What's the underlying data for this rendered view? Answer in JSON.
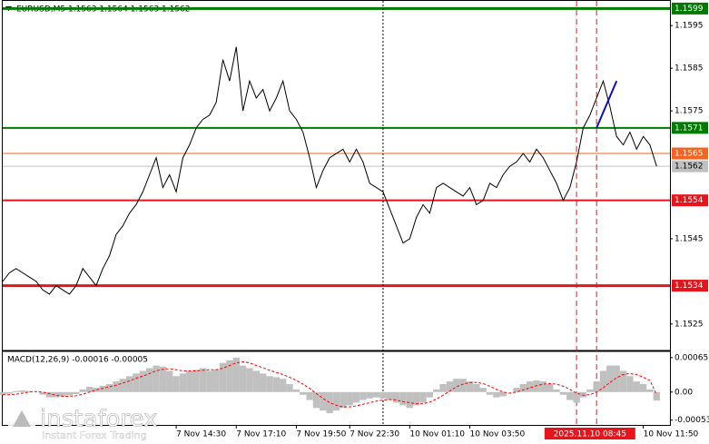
{
  "chart_data": [
    {
      "type": "line",
      "title": "EURUSD,M5  1.1563 1.1564 1.1563 1.1562",
      "color": "#000000",
      "values": [
        1.1535,
        1.1537,
        1.1538,
        1.1537,
        1.1536,
        1.1535,
        1.1533,
        1.1532,
        1.1534,
        1.1533,
        1.1532,
        1.1534,
        1.1538,
        1.1536,
        1.1534,
        1.1538,
        1.1541,
        1.1546,
        1.1548,
        1.1551,
        1.1553,
        1.1556,
        1.156,
        1.1564,
        1.1557,
        1.156,
        1.1556,
        1.1564,
        1.1567,
        1.1571,
        1.1573,
        1.1574,
        1.1577,
        1.1587,
        1.1582,
        1.159,
        1.1575,
        1.1582,
        1.1578,
        1.158,
        1.1575,
        1.1578,
        1.1582,
        1.1575,
        1.1573,
        1.157,
        1.1564,
        1.1557,
        1.1561,
        1.1564,
        1.1565,
        1.1566,
        1.1563,
        1.1566,
        1.1563,
        1.1558,
        1.1557,
        1.1556,
        1.1552,
        1.1548,
        1.1544,
        1.1545,
        1.155,
        1.1553,
        1.1551,
        1.1557,
        1.1558,
        1.1557,
        1.1556,
        1.1555,
        1.1557,
        1.1553,
        1.1554,
        1.1558,
        1.1557,
        1.156,
        1.1562,
        1.1563,
        1.1565,
        1.1563,
        1.1566,
        1.1564,
        1.1561,
        1.1558,
        1.1554,
        1.1557,
        1.1563,
        1.1571,
        1.1574,
        1.1578,
        1.1582,
        1.1576,
        1.1569,
        1.1567,
        1.157,
        1.1566,
        1.1569,
        1.1567,
        1.1562
      ],
      "xlim": [
        0,
        100
      ],
      "ylim": [
        1.1519,
        1.1601
      ],
      "yticks": [
        1.1595,
        1.1585,
        1.1575,
        1.1545,
        1.1525
      ],
      "levels": [
        {
          "value": 1.1599,
          "color": "#007a00",
          "style": "thick"
        },
        {
          "value": 1.1571,
          "color": "#007a00",
          "style": "normal"
        },
        {
          "value": 1.1565,
          "color": "#f26522",
          "style": "thin"
        },
        {
          "value": 1.1562,
          "color": "#c0c0c0",
          "style": "thin"
        },
        {
          "value": 1.1554,
          "color": "#e8141b",
          "style": "normal"
        },
        {
          "value": 1.1534,
          "color": "#e8141b",
          "style": "thick"
        }
      ],
      "trend_line": {
        "x": [
          89,
          92
        ],
        "y": [
          1.1571,
          1.1582
        ],
        "color": "#1010c0"
      },
      "vlines": [
        {
          "x": 57,
          "color": "#000000",
          "style": "dotted"
        },
        {
          "x": 86,
          "color": "#e8141b",
          "style": "dashed"
        },
        {
          "x": 89,
          "color": "#e8141b",
          "style": "dashed"
        }
      ]
    },
    {
      "type": "bar",
      "title": "MACD(12,26,9) -0.00016 -0.00005",
      "series": [
        {
          "type": "bar",
          "color": "#c0c0c0",
          "values": [
            -5e-05,
            -3e-05,
            2e-05,
            3e-05,
            2e-05,
            0,
            -5e-05,
            -0.0001,
            -0.0001,
            -8e-05,
            -6e-05,
            -4e-05,
            5e-05,
            0.0001,
            8e-05,
            0.00012,
            0.00015,
            0.0002,
            0.00025,
            0.0003,
            0.00035,
            0.0004,
            0.00045,
            0.0005,
            0.00048,
            0.0004,
            0.0003,
            0.00035,
            0.0004,
            0.00042,
            0.00045,
            0.0004,
            0.00042,
            0.00055,
            0.0006,
            0.00065,
            0.0005,
            0.00045,
            0.0004,
            0.00035,
            0.0003,
            0.00028,
            0.00025,
            0.00015,
            5e-05,
            -5e-05,
            -0.00015,
            -0.0003,
            -0.00035,
            -0.0004,
            -0.00035,
            -0.0003,
            -0.00025,
            -0.0002,
            -0.00015,
            -0.00012,
            -0.0001,
            -0.00012,
            -0.00015,
            -0.0002,
            -0.00025,
            -0.0003,
            -0.00025,
            -0.0002,
            -0.0001,
            5e-05,
            0.00015,
            0.0002,
            0.00025,
            0.00025,
            0.0002,
            0.00015,
            8e-05,
            -5e-05,
            -0.0001,
            -8e-05,
            0,
            8e-05,
            0.00015,
            0.0002,
            0.00022,
            0.0002,
            0.00015,
            5e-05,
            -5e-05,
            -0.00015,
            -0.0002,
            -0.0001,
            5e-05,
            0.0002,
            0.0004,
            0.0005,
            0.0005,
            0.0004,
            0.0003,
            0.0002,
            0.00015,
            5e-05,
            -0.00016
          ]
        },
        {
          "type": "line",
          "color": "#ff0000",
          "values": [
            -5e-05,
            -5e-05,
            -4e-05,
            -2e-05,
            0,
            1e-05,
            0,
            -3e-05,
            -6e-05,
            -8e-05,
            -8e-05,
            -7e-05,
            -4e-05,
            0,
            4e-05,
            7e-05,
            0.0001,
            0.00013,
            0.00017,
            0.00021,
            0.00026,
            0.0003,
            0.00035,
            0.0004,
            0.00043,
            0.00044,
            0.00042,
            0.0004,
            0.0004,
            0.0004,
            0.00041,
            0.00042,
            0.00042,
            0.00045,
            0.0005,
            0.00055,
            0.00057,
            0.00055,
            0.0005,
            0.00046,
            0.00041,
            0.00037,
            0.00033,
            0.00028,
            0.00022,
            0.00015,
            7e-05,
            -3e-05,
            -0.00012,
            -0.0002,
            -0.00025,
            -0.00028,
            -0.00028,
            -0.00026,
            -0.00023,
            -0.0002,
            -0.00017,
            -0.00015,
            -0.00014,
            -0.00015,
            -0.00018,
            -0.0002,
            -0.00022,
            -0.00022,
            -0.00019,
            -0.00013,
            -6e-05,
            2e-05,
            0.0001,
            0.00015,
            0.00018,
            0.00018,
            0.00016,
            0.00011,
            5e-05,
            0,
            -2e-05,
            0,
            4e-05,
            8e-05,
            0.00012,
            0.00015,
            0.00016,
            0.00015,
            0.00011,
            5e-05,
            -2e-05,
            -6e-05,
            -5e-05,
            0,
            8e-05,
            0.00018,
            0.00027,
            0.00033,
            0.00035,
            0.00033,
            0.00028,
            0.00022,
            -5e-05
          ]
        }
      ],
      "xlim": [
        0,
        100
      ],
      "ylim": [
        -0.00062,
        0.00075
      ],
      "yticks": [
        0.00065,
        {
          "value": 0,
          "label": "0.00"
        },
        -0.00053
      ],
      "xticks": [
        {
          "value": 26,
          "label": "7 Nov 14:30"
        },
        {
          "value": 35,
          "label": "7 Nov 17:10"
        },
        {
          "value": 44,
          "label": "7 Nov 19:50"
        },
        {
          "value": 52,
          "label": "7 Nov 22:30"
        },
        {
          "value": 61,
          "label": "10 Nov 01:10"
        },
        {
          "value": 70,
          "label": "10 Nov 03:50"
        },
        {
          "value": 96,
          "label": "10 Nov 11:50"
        }
      ],
      "cursor_label": {
        "value": 88,
        "label": "2025.11.10 08:45"
      }
    }
  ],
  "watermark": {
    "name": "instaforex",
    "tagline": "Instant Forex Trading"
  }
}
